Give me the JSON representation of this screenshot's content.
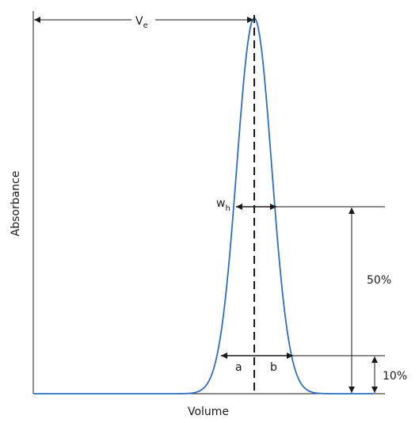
{
  "labels": {
    "ve_main": "V",
    "ve_sub": "e",
    "wh_main": "w",
    "wh_sub": "h",
    "a": "a",
    "b": "b",
    "pct_50": "50%",
    "pct_10": "10%",
    "x_axis": "Volume",
    "y_axis": "Absorbance"
  },
  "colors": {
    "peak_curve": "#2e6fc4",
    "axes": "#1a1a1a",
    "text": "#1a1a1a"
  }
}
